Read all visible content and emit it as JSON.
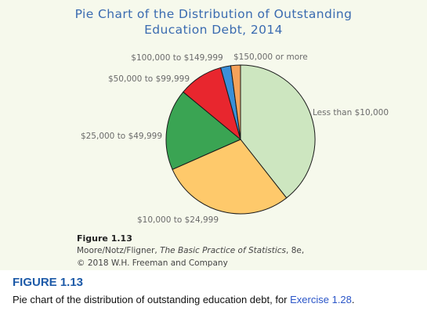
{
  "chart_data": {
    "type": "pie",
    "title": "Pie Chart of the Distribution of Outstanding Education Debt, 2014",
    "title_lines": [
      "Pie Chart of the Distribution of Outstanding",
      "Education Debt, 2014"
    ],
    "slices": [
      {
        "label": "Less than $10,000",
        "value": 39.4,
        "color": "#cde6c0"
      },
      {
        "label": "$10,000 to $24,999",
        "value": 29.0,
        "color": "#fec96b"
      },
      {
        "label": "$25,000 to $49,999",
        "value": 17.6,
        "color": "#3aa453"
      },
      {
        "label": "$50,000 to $99,999",
        "value": 9.7,
        "color": "#e8262e"
      },
      {
        "label": "$100,000 to $149,999",
        "value": 2.2,
        "color": "#3a8fd8"
      },
      {
        "label": "$150,000 or more",
        "value": 2.1,
        "color": "#f5a25a"
      }
    ],
    "start_angle_deg": 0,
    "direction": "clockwise",
    "legend": "none"
  },
  "caption": {
    "label": "Figure 1.13",
    "authors": "Moore/Notz/Fligner, ",
    "book": "The Basic Practice of Statistics",
    "edition": ", 8e,",
    "copyright": "© 2018 W.H. Freeman and Company"
  },
  "figure": {
    "heading": "FIGURE 1.13",
    "text": "Pie chart of the distribution of outstanding education debt, for ",
    "link": "Exercise 1.28",
    "end": "."
  },
  "colors": {
    "title": "#3a6bb0",
    "panel_bg": "#f6f9ec",
    "heading": "#1d5aa8",
    "link": "#2a55c8"
  }
}
